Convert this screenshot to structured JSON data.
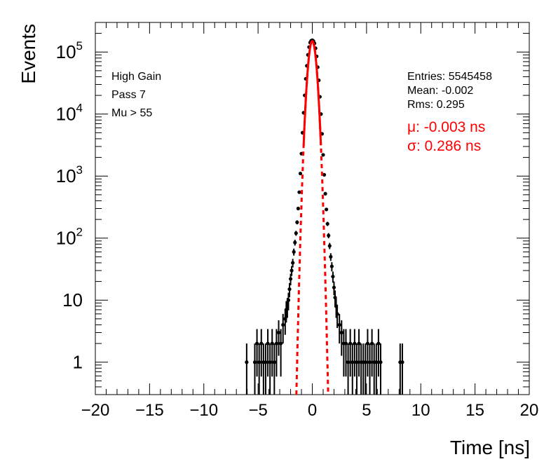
{
  "chart_data": {
    "type": "scatter",
    "title": "",
    "xlabel": "Time [ns]",
    "ylabel": "Events",
    "xlim": [
      -20,
      20
    ],
    "ylim": [
      0.3,
      300000
    ],
    "yscale": "log",
    "x_ticks": [
      -20,
      -15,
      -10,
      -5,
      0,
      5,
      10,
      15,
      20
    ],
    "x_tick_labels": [
      "−20",
      "−15",
      "−10",
      "−5",
      "0",
      "5",
      "10",
      "15",
      "20"
    ],
    "y_tick_labels": [
      "1",
      "10",
      "10^2",
      "10^3",
      "10^4",
      "10^5"
    ],
    "grid": false,
    "annotations_left": [
      "High Gain",
      "Pass 7",
      "Mu > 55"
    ],
    "stats": {
      "entries": "Entries: 5545458",
      "mean": "Mean: -0.002",
      "rms": "Rms: 0.295"
    },
    "fit": {
      "mu_label": "μ: -0.003 ns",
      "sigma_label": "σ: 0.286 ns",
      "mu": -0.003,
      "sigma": 0.286,
      "amplitude": 150000,
      "color": "#ff0000"
    },
    "series": [
      {
        "name": "",
        "color": "#000000",
        "x": [
          -6.05,
          -5.3,
          -5.1,
          -4.9,
          -4.7,
          -4.5,
          -4.3,
          -4.1,
          -3.9,
          -3.7,
          -3.5,
          -3.3,
          -3.1,
          -2.9,
          -2.7,
          -2.5,
          -2.4,
          -2.3,
          -2.2,
          -2.1,
          -2.0,
          -1.9,
          -1.8,
          -1.7,
          -1.6,
          -1.5,
          -1.4,
          -1.3,
          -1.2,
          -1.1,
          -1.0,
          -0.9,
          -0.8,
          -0.7,
          -0.6,
          -0.5,
          -0.4,
          -0.3,
          -0.2,
          -0.1,
          0.0,
          0.1,
          0.2,
          0.3,
          0.4,
          0.5,
          0.6,
          0.7,
          0.8,
          0.9,
          1.0,
          1.1,
          1.2,
          1.3,
          1.4,
          1.5,
          1.6,
          1.7,
          1.8,
          1.9,
          2.0,
          2.1,
          2.2,
          2.3,
          2.5,
          2.7,
          2.9,
          3.1,
          3.3,
          3.5,
          3.7,
          3.9,
          4.1,
          4.3,
          4.5,
          4.7,
          4.9,
          5.1,
          5.3,
          5.5,
          5.7,
          5.9,
          6.1,
          6.3,
          8.1,
          8.3
        ],
        "y": [
          1,
          1,
          2,
          1,
          2,
          1,
          1,
          2,
          1,
          2,
          1,
          2,
          3,
          2,
          4,
          5,
          7,
          8,
          10,
          15,
          22,
          30,
          40,
          60,
          85,
          120,
          180,
          300,
          550,
          1100,
          2300,
          5000,
          10500,
          20000,
          37000,
          60000,
          90000,
          120000,
          142000,
          152000,
          155000,
          150000,
          138000,
          115000,
          85000,
          57000,
          35000,
          19000,
          10000,
          4800,
          2200,
          1050,
          520,
          290,
          170,
          110,
          75,
          50,
          35,
          24,
          16,
          11,
          8,
          6,
          4,
          3,
          2,
          2,
          1,
          2,
          1,
          2,
          1,
          2,
          1,
          1,
          1,
          2,
          1,
          2,
          1,
          1,
          2,
          1,
          1,
          1
        ]
      }
    ]
  }
}
